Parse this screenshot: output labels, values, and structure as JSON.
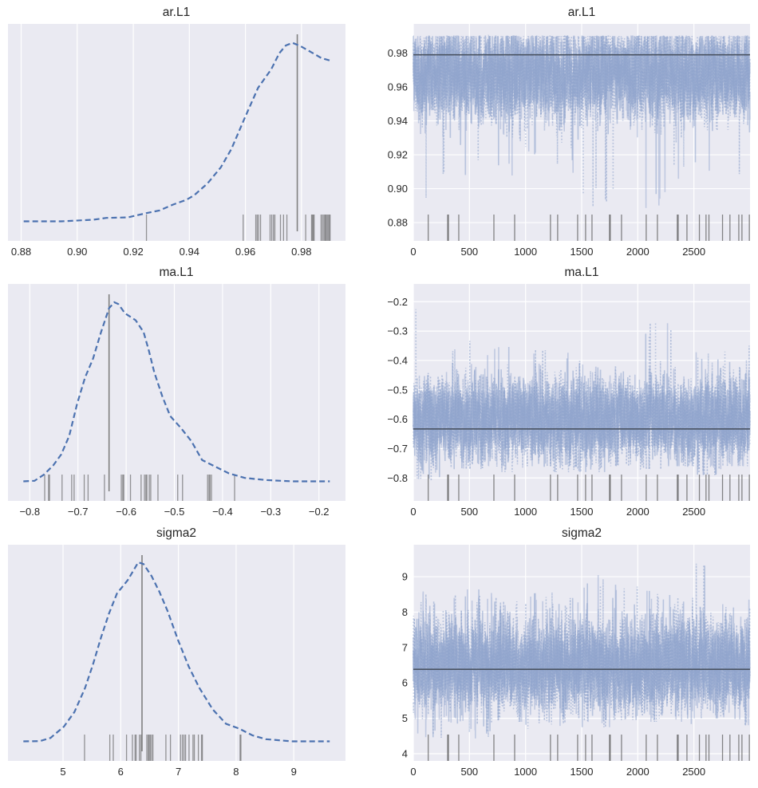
{
  "chart_data": [
    {
      "type": "line",
      "variable": "ar.L1",
      "title": "ar.L1",
      "panel": "posterior-density",
      "xticks": [
        "0.88",
        "0.90",
        "0.92",
        "0.94",
        "0.96",
        "0.98"
      ],
      "xlim": [
        0.8753,
        0.9957
      ],
      "grid": "vertical",
      "kde_line_style": "dashed",
      "kde": {
        "x": [
          0.8809,
          0.8943,
          0.9057,
          0.9104,
          0.918,
          0.9247,
          0.9294,
          0.9341,
          0.9389,
          0.9417,
          0.9465,
          0.9512,
          0.955,
          0.9597,
          0.9645,
          0.9692,
          0.9721,
          0.9744,
          0.9768,
          0.9796,
          0.9834,
          0.9872,
          0.99
        ],
        "density_relative": [
          0,
          0,
          0.009,
          0.019,
          0.022,
          0.046,
          0.061,
          0.093,
          0.12,
          0.145,
          0.212,
          0.301,
          0.404,
          0.575,
          0.745,
          0.849,
          0.939,
          0.982,
          0.997,
          0.979,
          0.945,
          0.911,
          0.899
        ]
      },
      "reference_value": 0.9785,
      "rug_values": [
        0.9247,
        0.9592,
        0.9637,
        0.9642,
        0.9647,
        0.9654,
        0.9688,
        0.9694,
        0.97,
        0.9705,
        0.9725,
        0.9736,
        0.9748,
        0.9815,
        0.9836,
        0.9839,
        0.9842,
        0.9845,
        0.987,
        0.9875,
        0.988,
        0.9884,
        0.9887,
        0.9891,
        0.9895,
        0.9899,
        0.9902
      ]
    },
    {
      "type": "line",
      "variable": "ar.L1",
      "title": "ar.L1",
      "panel": "trace",
      "xticks": [
        "0",
        "500",
        "1000",
        "1500",
        "2000",
        "2500"
      ],
      "yticks": [
        "0.88",
        "0.90",
        "0.92",
        "0.94",
        "0.96",
        "0.98"
      ],
      "xlim": [
        0,
        3000
      ],
      "ylim": [
        0.8692,
        0.9972
      ],
      "grid": "both",
      "reference_value": 0.979,
      "trace_core_range": [
        0.945,
        0.99
      ],
      "trace_bin_size": 250,
      "trace_bin_min": [
        0.882,
        0.901,
        0.912,
        0.907,
        0.92,
        0.909,
        0.889,
        0.897,
        0.887,
        0.905,
        0.91,
        0.906
      ],
      "trace_bin_max": [
        0.99,
        0.99,
        0.99,
        0.99,
        0.99,
        0.99,
        0.99,
        0.99,
        0.99,
        0.99,
        0.99,
        0.99
      ],
      "divergence_draws": [
        133,
        306,
        313,
        405,
        718,
        903,
        1222,
        1286,
        1464,
        1535,
        1592,
        1748,
        1755,
        1855,
        2075,
        2175,
        2352,
        2360,
        2438,
        2549,
        2608,
        2634,
        2755,
        2821,
        2900,
        2928,
        2994
      ]
    },
    {
      "type": "line",
      "variable": "ma.L1",
      "title": "ma.L1",
      "panel": "posterior-density",
      "xticks": [
        "−0.8",
        "−0.7",
        "−0.6",
        "−0.5",
        "−0.4",
        "−0.3",
        "−0.2"
      ],
      "xlim": [
        -0.8452,
        -0.1449
      ],
      "grid": "vertical",
      "kde_line_style": "dashed",
      "kde": {
        "x": [
          -0.8132,
          -0.79,
          -0.7708,
          -0.7514,
          -0.7349,
          -0.7183,
          -0.7018,
          -0.6852,
          -0.6687,
          -0.6521,
          -0.6355,
          -0.6245,
          -0.6162,
          -0.6024,
          -0.5804,
          -0.5638,
          -0.5528,
          -0.5417,
          -0.5252,
          -0.5086,
          -0.4865,
          -0.4645,
          -0.4424,
          -0.4203,
          -0.3872,
          -0.3541,
          -0.3099,
          -0.2547,
          -0.1775
        ],
        "density_relative": [
          0,
          0.003,
          0.037,
          0.089,
          0.149,
          0.253,
          0.432,
          0.58,
          0.685,
          0.833,
          0.967,
          1.0,
          0.99,
          0.938,
          0.9,
          0.833,
          0.729,
          0.61,
          0.476,
          0.365,
          0.298,
          0.223,
          0.119,
          0.089,
          0.045,
          0.019,
          0.007,
          0,
          0
        ]
      },
      "reference_value": -0.6355,
      "rug_values": [
        -0.769,
        -0.761,
        -0.759,
        -0.733,
        -0.713,
        -0.708,
        -0.687,
        -0.679,
        -0.645,
        -0.61,
        -0.607,
        -0.605,
        -0.591,
        -0.569,
        -0.562,
        -0.559,
        -0.557,
        -0.552,
        -0.549,
        -0.534,
        -0.493,
        -0.483,
        -0.431,
        -0.428,
        -0.426,
        -0.423,
        -0.375
      ]
    },
    {
      "type": "line",
      "variable": "ma.L1",
      "title": "ma.L1",
      "panel": "trace",
      "xticks": [
        "0",
        "500",
        "1000",
        "1500",
        "2000",
        "2500"
      ],
      "yticks": [
        "−0.8",
        "−0.7",
        "−0.6",
        "−0.5",
        "−0.4",
        "−0.3",
        "−0.2"
      ],
      "xlim": [
        0,
        3000
      ],
      "ylim": [
        -0.878,
        -0.1395
      ],
      "grid": "both",
      "reference_value": -0.633,
      "trace_core_range": [
        -0.72,
        -0.48
      ],
      "trace_bin_size": 250,
      "trace_bin_min": [
        -0.81,
        -0.77,
        -0.77,
        -0.78,
        -0.76,
        -0.78,
        -0.78,
        -0.76,
        -0.77,
        -0.76,
        -0.79,
        -0.76
      ],
      "trace_bin_max": [
        -0.17,
        -0.35,
        -0.32,
        -0.35,
        -0.34,
        -0.37,
        -0.29,
        -0.28,
        -0.27,
        -0.27,
        -0.37,
        -0.33
      ],
      "divergence_draws": [
        133,
        306,
        313,
        405,
        718,
        903,
        1222,
        1286,
        1464,
        1535,
        1592,
        1748,
        1755,
        1855,
        2075,
        2175,
        2352,
        2360,
        2438,
        2549,
        2608,
        2634,
        2755,
        2821,
        2900,
        2928,
        2994
      ]
    },
    {
      "type": "line",
      "variable": "sigma2",
      "title": "sigma2",
      "panel": "posterior-density",
      "xticks": [
        "5",
        "6",
        "7",
        "8",
        "9"
      ],
      "xlim": [
        4.046,
        9.896
      ],
      "grid": "vertical",
      "kde_line_style": "dashed",
      "kde": {
        "x": [
          4.313,
          4.599,
          4.783,
          5.014,
          5.198,
          5.382,
          5.521,
          5.659,
          5.797,
          5.935,
          6.12,
          6.304,
          6.396,
          6.535,
          6.673,
          6.811,
          6.995,
          7.18,
          7.364,
          7.594,
          7.825,
          8.055,
          8.286,
          8.516,
          8.977,
          9.622
        ],
        "density_relative": [
          0,
          0.0015,
          0.019,
          0.082,
          0.164,
          0.298,
          0.432,
          0.58,
          0.714,
          0.826,
          0.9,
          1.0,
          0.99,
          0.923,
          0.833,
          0.729,
          0.565,
          0.417,
          0.298,
          0.179,
          0.098,
          0.071,
          0.033,
          0.012,
          0,
          0
        ]
      },
      "reference_value": 6.369,
      "rug_values": [
        5.373,
        5.811,
        5.871,
        6.101,
        6.203,
        6.249,
        6.267,
        6.323,
        6.35,
        6.452,
        6.475,
        6.493,
        6.512,
        6.535,
        6.558,
        6.783,
        6.862,
        7.037,
        7.069,
        7.097,
        7.124,
        7.184,
        7.253,
        7.276,
        7.346,
        7.401,
        7.415,
        8.069,
        8.083
      ]
    },
    {
      "type": "line",
      "variable": "sigma2",
      "title": "sigma2",
      "panel": "trace",
      "xticks": [
        "0",
        "500",
        "1000",
        "1500",
        "2000",
        "2500"
      ],
      "yticks": [
        "4",
        "5",
        "6",
        "7",
        "8",
        "9"
      ],
      "xlim": [
        0,
        3000
      ],
      "ylim": [
        3.797,
        9.902
      ],
      "grid": "both",
      "reference_value": 6.383,
      "trace_core_range": [
        5.4,
        7.6
      ],
      "trace_bin_size": 250,
      "trace_bin_min": [
        4.45,
        4.85,
        4.35,
        4.9,
        4.7,
        4.75,
        4.75,
        4.95,
        4.9,
        4.8,
        5.0,
        4.8
      ],
      "trace_bin_max": [
        8.6,
        8.7,
        8.7,
        8.3,
        8.6,
        8.4,
        9.1,
        8.8,
        8.65,
        8.5,
        9.65,
        8.35
      ],
      "divergence_draws": [
        133,
        306,
        313,
        405,
        718,
        903,
        1222,
        1286,
        1464,
        1535,
        1592,
        1748,
        1755,
        1855,
        2075,
        2175,
        2352,
        2360,
        2438,
        2549,
        2608,
        2634,
        2755,
        2821,
        2900,
        2928,
        2994
      ]
    }
  ],
  "colors": {
    "axes_background": "#eaeaf2",
    "grid": "#ffffff",
    "kde_line": "#4c72b0",
    "trace": "#8da2cc",
    "reference_line": "#4a5362",
    "rug": "#555555",
    "text": "#262626"
  }
}
